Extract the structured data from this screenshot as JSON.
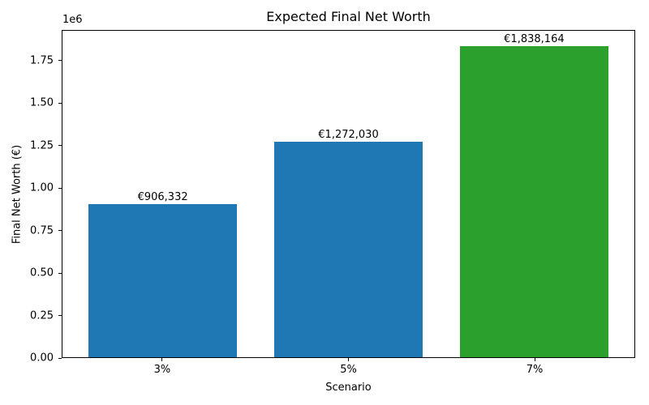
{
  "chart_data": {
    "type": "bar",
    "title": "Expected Final Net Worth",
    "xlabel": "Scenario",
    "ylabel": "Final Net Worth (€)",
    "y_offset_text": "1e6",
    "categories": [
      "3%",
      "5%",
      "7%"
    ],
    "values": [
      906332,
      1272030,
      1838164
    ],
    "value_labels": [
      "€906,332",
      "€1,272,030",
      "€1,838,164"
    ],
    "bar_colors": [
      "#1f77b4",
      "#1f77b4",
      "#2ca02c"
    ],
    "bar_width": 0.8,
    "xlim": [
      -0.54,
      2.54
    ],
    "ylim": [
      0,
      1930072
    ],
    "yticks": [
      {
        "value": 0,
        "label": "0.00"
      },
      {
        "value": 250000,
        "label": "0.25"
      },
      {
        "value": 500000,
        "label": "0.50"
      },
      {
        "value": 750000,
        "label": "0.75"
      },
      {
        "value": 1000000,
        "label": "1.00"
      },
      {
        "value": 1250000,
        "label": "1.25"
      },
      {
        "value": 1500000,
        "label": "1.50"
      },
      {
        "value": 1750000,
        "label": "1.75"
      }
    ],
    "grid": false,
    "legend_position": "none",
    "background_color": "#ffffff",
    "spine_color": "#000000"
  }
}
